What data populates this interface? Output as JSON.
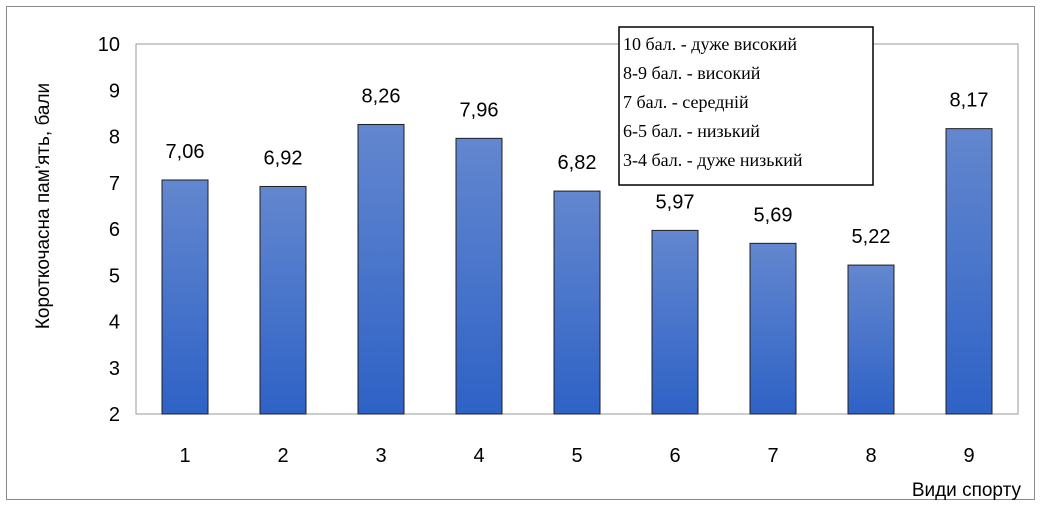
{
  "chart_data": {
    "type": "bar",
    "categories": [
      "1",
      "2",
      "3",
      "4",
      "5",
      "6",
      "7",
      "8",
      "9"
    ],
    "values": [
      7.06,
      6.92,
      8.26,
      7.96,
      6.82,
      5.97,
      5.69,
      5.22,
      8.17
    ],
    "data_labels": [
      "7,06",
      "6,92",
      "8,26",
      "7,96",
      "6,82",
      "5,97",
      "5,69",
      "5,22",
      "8,17"
    ],
    "title": "",
    "xlabel": "Види спорту",
    "ylabel": "Короткочасна пам’ять, бали",
    "ylim": [
      2,
      10
    ],
    "yticks": [
      "2",
      "3",
      "4",
      "5",
      "6",
      "7",
      "8",
      "9",
      "10"
    ],
    "grid": false,
    "bar_color_top": "#6387cf",
    "bar_color_bottom": "#2e62c6",
    "legend_box": {
      "lines": [
        "10 бал. - дуже високий",
        "8-9 бал. - високий",
        "7 бал. - середній",
        "6-5 бал. - низький",
        "3-4 бал. - дуже низький"
      ],
      "placement": "top-right"
    }
  }
}
